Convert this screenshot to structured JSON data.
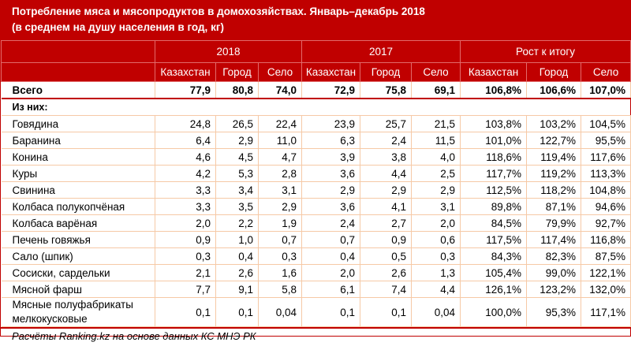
{
  "title_line1": "Потребление мяса и мясопродуктов в домохозяйствах. Январь–декабрь 2018",
  "title_line2": "(в среднем на душу населения в год, кг)",
  "groups": [
    "2018",
    "2017",
    "Рост к итогу"
  ],
  "subheaders": [
    "Казахстан",
    "Город",
    "Село",
    "Казахстан",
    "Город",
    "Село",
    "Казахстан",
    "Город",
    "Село"
  ],
  "total": {
    "label": "Всего",
    "values": [
      "77,9",
      "80,8",
      "74,0",
      "72,9",
      "75,8",
      "69,1",
      "106,8%",
      "106,6%",
      "107,0%"
    ]
  },
  "subsection_label": "Из них:",
  "rows": [
    {
      "label": "Говядина",
      "values": [
        "24,8",
        "26,5",
        "22,4",
        "23,9",
        "25,7",
        "21,5",
        "103,8%",
        "103,2%",
        "104,5%"
      ]
    },
    {
      "label": "Баранина",
      "values": [
        "6,4",
        "2,9",
        "11,0",
        "6,3",
        "2,4",
        "11,5",
        "101,0%",
        "122,7%",
        "95,5%"
      ]
    },
    {
      "label": "Конина",
      "values": [
        "4,6",
        "4,5",
        "4,7",
        "3,9",
        "3,8",
        "4,0",
        "118,6%",
        "119,4%",
        "117,6%"
      ]
    },
    {
      "label": "Куры",
      "values": [
        "4,2",
        "5,3",
        "2,8",
        "3,6",
        "4,4",
        "2,5",
        "117,7%",
        "119,2%",
        "113,3%"
      ]
    },
    {
      "label": "Свинина",
      "values": [
        "3,3",
        "3,4",
        "3,1",
        "2,9",
        "2,9",
        "2,9",
        "112,5%",
        "118,2%",
        "104,8%"
      ]
    },
    {
      "label": "Колбаса полукопчёная",
      "values": [
        "3,3",
        "3,5",
        "2,9",
        "3,6",
        "4,1",
        "3,1",
        "89,8%",
        "87,1%",
        "94,6%"
      ]
    },
    {
      "label": "Колбаса варёная",
      "values": [
        "2,0",
        "2,2",
        "1,9",
        "2,4",
        "2,7",
        "2,0",
        "84,5%",
        "79,9%",
        "92,7%"
      ]
    },
    {
      "label": "Печень говяжья",
      "values": [
        "0,9",
        "1,0",
        "0,7",
        "0,7",
        "0,9",
        "0,6",
        "117,5%",
        "117,4%",
        "116,8%"
      ]
    },
    {
      "label": "Сало (шпик)",
      "values": [
        "0,3",
        "0,4",
        "0,3",
        "0,4",
        "0,5",
        "0,3",
        "84,3%",
        "82,3%",
        "87,5%"
      ]
    },
    {
      "label": "Сосиски, сардельки",
      "values": [
        "2,1",
        "2,6",
        "1,6",
        "2,0",
        "2,6",
        "1,3",
        "105,4%",
        "99,0%",
        "122,1%"
      ]
    },
    {
      "label": "Мясной фарш",
      "values": [
        "7,7",
        "9,1",
        "5,8",
        "6,1",
        "7,4",
        "4,4",
        "126,1%",
        "123,2%",
        "132,0%"
      ]
    },
    {
      "label": "Мясные полуфабрикаты мелкокусковые",
      "values": [
        "0,1",
        "0,1",
        "0,04",
        "0,1",
        "0,1",
        "0,04",
        "100,0%",
        "95,3%",
        "117,1%"
      ]
    }
  ],
  "footer": "Расчёты Ranking.kz на основе данных КС МНЭ РК",
  "colors": {
    "header_bg": "#c00000",
    "grid": "#f6c9a6"
  }
}
